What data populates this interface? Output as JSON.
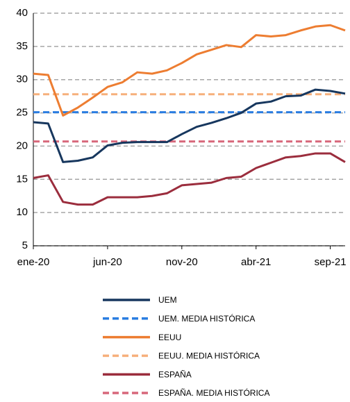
{
  "chart_data": {
    "type": "line",
    "categories": [
      "ene-20",
      null,
      null,
      null,
      null,
      "jun-20",
      null,
      null,
      null,
      null,
      "nov-20",
      null,
      null,
      null,
      null,
      "abr-21",
      null,
      null,
      null,
      null,
      "sep-21",
      null
    ],
    "ylim": [
      5,
      40
    ],
    "yticks": [
      5,
      10,
      15,
      20,
      25,
      30,
      35,
      40
    ],
    "grid": true,
    "series": [
      {
        "name": "UEM",
        "color": "#17375e",
        "values": [
          23.6,
          23.4,
          17.6,
          17.8,
          18.3,
          20.1,
          20.5,
          20.6,
          20.6,
          20.6,
          21.8,
          22.9,
          23.5,
          24.2,
          25.0,
          26.4,
          26.7,
          27.5,
          27.6,
          28.5,
          28.3,
          27.9
        ]
      },
      {
        "name": "UEM. MEDIA HISTÓRICA",
        "color": "#2a7de1",
        "dashed": true,
        "value": 25.1
      },
      {
        "name": "EEUU",
        "color": "#ed7d31",
        "values": [
          30.9,
          30.7,
          24.6,
          25.8,
          27.3,
          28.9,
          29.6,
          31.1,
          30.9,
          31.4,
          32.5,
          33.8,
          34.5,
          35.2,
          34.9,
          36.7,
          36.5,
          36.7,
          37.4,
          38.0,
          38.2,
          37.4
        ]
      },
      {
        "name": "EEUU. MEDIA HISTÓRICA",
        "color": "#f6b07c",
        "dashed": true,
        "value": 27.8
      },
      {
        "name": "ESPAÑA",
        "color": "#9b2d3d",
        "values": [
          15.2,
          15.6,
          11.6,
          11.2,
          11.2,
          12.3,
          12.3,
          12.3,
          12.5,
          12.9,
          14.1,
          14.3,
          14.5,
          15.2,
          15.4,
          16.7,
          17.5,
          18.3,
          18.5,
          18.9,
          18.9,
          17.6
        ]
      },
      {
        "name": "ESPAÑA. MEDIA HISTÓRICA",
        "color": "#d7677a",
        "dashed": true,
        "value": 20.7
      }
    ]
  }
}
